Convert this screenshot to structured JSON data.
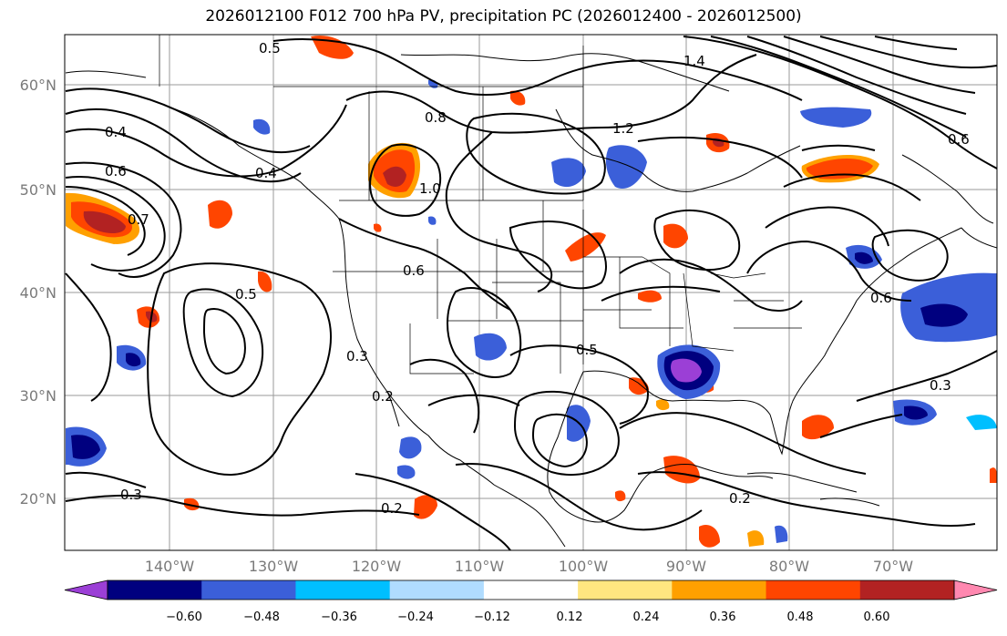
{
  "title": "2026012100 F012 700 hPa PV, precipitation PC (2026012400 - 2026012500)",
  "lat_labels": [
    "60°N",
    "50°N",
    "40°N",
    "30°N",
    "20°N"
  ],
  "lon_labels": [
    "140°W",
    "130°W",
    "120°W",
    "110°W",
    "100°W",
    "90°W",
    "80°W",
    "70°W"
  ],
  "colorbar": {
    "ticks": [
      "−0.60",
      "−0.48",
      "−0.36",
      "−0.24",
      "−0.12",
      "0.12",
      "0.24",
      "0.36",
      "0.48",
      "0.60"
    ],
    "colors": [
      "#9b3fd6",
      "#00007f",
      "#3b5fd9",
      "#00bfff",
      "#b0dcff",
      "#ffffff",
      "#ffe680",
      "#ffa000",
      "#ff4500",
      "#b22222",
      "#ff88b0"
    ]
  },
  "contour_labels": [
    "0.5",
    "0.6",
    "0.4",
    "0.8",
    "1.2",
    "0.7",
    "0.3",
    "0.2",
    "1.0",
    "0.4",
    "0.6",
    "0.5",
    "0.3",
    "0.2",
    "0.3",
    "0.2",
    "0.5",
    "0.6",
    "1.4",
    "0.6"
  ]
}
